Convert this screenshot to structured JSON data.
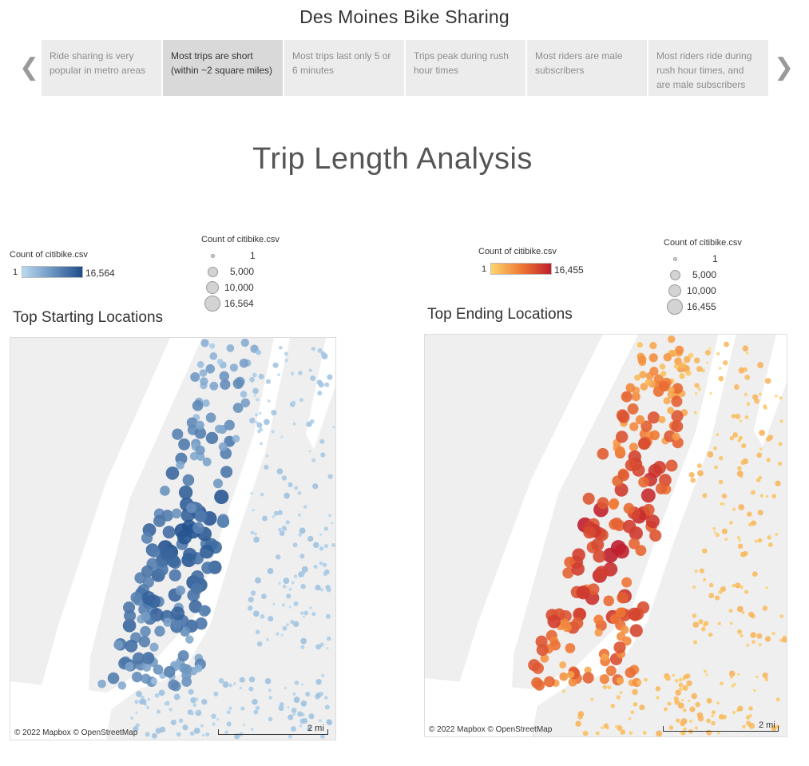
{
  "story": {
    "title": "Des Moines Bike Sharing",
    "points": [
      "Ride sharing is very popular in metro areas",
      "Most trips are short (within ~2 square miles)",
      "Most trips last only 5 or 6 minutes",
      "Trips peak during rush hour times",
      "Most riders are male subscribers",
      "Most riders ride during rush hour times, and are male subscribers"
    ],
    "active_index": 1,
    "prev_glyph": "❮",
    "next_glyph": "❯"
  },
  "dashboard": {
    "title": "Trip Length Analysis"
  },
  "colors": {
    "blue_low": "#b9daf1",
    "blue_high": "#1f4e8c",
    "orange_low": "#fdd46a",
    "orange_mid": "#f07a35",
    "orange_high": "#bf1e2d",
    "land": "#efefef",
    "water": "#ffffff"
  },
  "start_map": {
    "title": "Top Starting Locations",
    "color_legend": {
      "label": "Count of citibike.csv",
      "min": "1",
      "max": "16,564"
    },
    "size_legend": {
      "label": "Count of citibike.csv",
      "values": [
        "1",
        "5,000",
        "10,000",
        "16,564"
      ]
    },
    "attribution": "© 2022 Mapbox © OpenStreetMap",
    "scale_label": "2 mi"
  },
  "end_map": {
    "title": "Top Ending Locations",
    "color_legend": {
      "label": "Count of citibike.csv",
      "min": "1",
      "max": "16,455"
    },
    "size_legend": {
      "label": "Count of citibike.csv",
      "values": [
        "1",
        "5,000",
        "10,000",
        "16,455"
      ]
    },
    "attribution": "© 2022 Mapbox © OpenStreetMap",
    "scale_label": "2 mi"
  }
}
